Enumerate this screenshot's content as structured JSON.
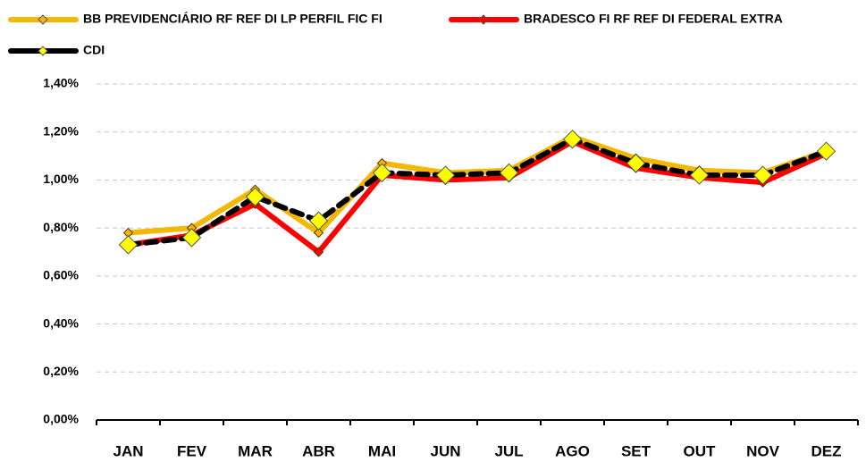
{
  "chart_data": {
    "type": "line",
    "categories": [
      "JAN",
      "FEV",
      "MAR",
      "ABR",
      "MAI",
      "JUN",
      "JUL",
      "AGO",
      "SET",
      "OUT",
      "NOV",
      "DEZ"
    ],
    "series": [
      {
        "name": "BB PREVIDENCIÁRIO RF REF DI LP PERFIL FIC FI",
        "color": "#f5b800",
        "marker_color": "#f5b800",
        "values": [
          0.78,
          0.8,
          0.96,
          0.78,
          1.07,
          1.03,
          1.04,
          1.18,
          1.09,
          1.04,
          1.03,
          1.12
        ]
      },
      {
        "name": "BRADESCO FI RF REF DI FEDERAL EXTRA",
        "color": "#ff0000",
        "marker_color": "#ff0000",
        "values": [
          0.73,
          0.77,
          0.9,
          0.7,
          1.02,
          1.0,
          1.01,
          1.16,
          1.05,
          1.01,
          0.99,
          1.11
        ]
      },
      {
        "name": "CDI",
        "color": "#000000",
        "marker_color": "#ffff00",
        "dashed": true,
        "values": [
          0.73,
          0.76,
          0.93,
          0.83,
          1.03,
          1.02,
          1.03,
          1.17,
          1.07,
          1.02,
          1.02,
          1.12
        ]
      }
    ],
    "ylim": [
      0,
      1.4
    ],
    "yticks": [
      {
        "value": 0,
        "label": "0,00%"
      },
      {
        "value": 0.2,
        "label": "0,20%"
      },
      {
        "value": 0.4,
        "label": "0,40%"
      },
      {
        "value": 0.6,
        "label": "0,60%"
      },
      {
        "value": 0.8,
        "label": "0,80%"
      },
      {
        "value": 1.0,
        "label": "1,00%"
      },
      {
        "value": 1.2,
        "label": "1,20%"
      },
      {
        "value": 1.4,
        "label": "1,40%"
      }
    ],
    "grid": true,
    "legend": "top"
  }
}
